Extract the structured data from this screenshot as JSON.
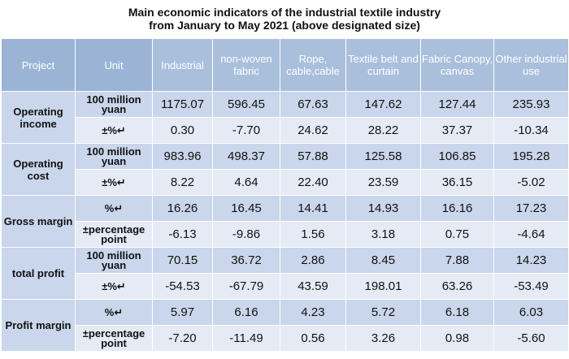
{
  "title": {
    "line1": "Main economic indicators of the industrial textile industry",
    "line2": "from January to May 2021 (above designated size)"
  },
  "header": {
    "project": "Project",
    "unit": "Unit",
    "cols": [
      "Industrial",
      "non-woven fabric",
      "Rope, cable,cable",
      "Textile belt and curtain",
      "Fabric Canopy, canvas",
      "Other industrial use"
    ]
  },
  "chart_data": {
    "type": "table",
    "columns": [
      "Project",
      "Unit",
      "Industrial",
      "non-woven fabric",
      "Rope, cable,cable",
      "Textile belt and curtain",
      "Fabric Canopy, canvas",
      "Other industrial use"
    ],
    "rows": [
      {
        "indicator": "Operating income",
        "unit": "100 million yuan",
        "values": [
          "1175.07",
          "596.45",
          "67.63",
          "147.62",
          "127.44",
          "235.93"
        ]
      },
      {
        "indicator": "Operating income",
        "unit": "±%↵",
        "values": [
          "0.30",
          "-7.70",
          "24.62",
          "28.22",
          "37.37",
          "-10.34"
        ]
      },
      {
        "indicator": "Operating cost",
        "unit": "100 million yuan",
        "values": [
          "983.96",
          "498.37",
          "57.88",
          "125.58",
          "106.85",
          "195.28"
        ]
      },
      {
        "indicator": "Operating cost",
        "unit": "±%↵",
        "values": [
          "8.22",
          "4.64",
          "22.40",
          "23.59",
          "36.15",
          "-5.02"
        ]
      },
      {
        "indicator": "Gross margin",
        "unit": "%↵",
        "values": [
          "16.26",
          "16.45",
          "14.41",
          "14.93",
          "16.16",
          "17.23"
        ]
      },
      {
        "indicator": "Gross margin",
        "unit": "±percentage point",
        "values": [
          "-6.13",
          "-9.86",
          "1.56",
          "3.18",
          "0.75",
          "-4.64"
        ]
      },
      {
        "indicator": "total profit",
        "unit": "100 million yuan",
        "values": [
          "70.15",
          "36.72",
          "2.86",
          "8.45",
          "7.88",
          "14.23"
        ]
      },
      {
        "indicator": "total profit",
        "unit": "±%↵",
        "values": [
          "-54.53",
          "-67.79",
          "43.59",
          "198.01",
          "63.26",
          "-53.49"
        ]
      },
      {
        "indicator": "Profit margin",
        "unit": "%↵",
        "values": [
          "5.97",
          "6.16",
          "4.23",
          "5.72",
          "6.18",
          "6.03"
        ]
      },
      {
        "indicator": "Profit margin",
        "unit": "±percentage point",
        "values": [
          "-7.20",
          "-11.49",
          "0.56",
          "3.26",
          "0.98",
          "-5.60"
        ]
      }
    ]
  }
}
